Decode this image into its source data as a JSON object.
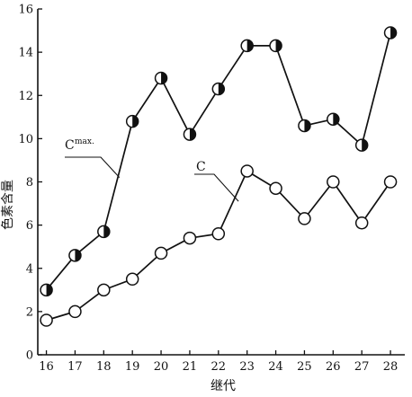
{
  "chart_data": {
    "type": "line",
    "xlabel": "继代",
    "ylabel": "色素含量",
    "xlim": [
      15.7,
      28.5
    ],
    "ylim": [
      0,
      16
    ],
    "x_ticks": [
      16,
      17,
      18,
      19,
      20,
      21,
      22,
      23,
      24,
      25,
      26,
      27,
      28
    ],
    "y_ticks": [
      0,
      2,
      4,
      6,
      8,
      10,
      12,
      14,
      16
    ],
    "grid": false,
    "series": [
      {
        "name": "C",
        "name_sup": "max.",
        "marker": "half-filled-circle",
        "x": [
          16,
          17,
          18,
          19,
          20,
          21,
          22,
          23,
          24,
          25,
          26,
          27,
          28
        ],
        "y": [
          3.0,
          4.6,
          5.7,
          10.8,
          12.8,
          10.2,
          12.3,
          14.3,
          14.3,
          10.6,
          10.9,
          9.7,
          14.9
        ]
      },
      {
        "name": "C",
        "name_sup": "",
        "marker": "open-circle",
        "x": [
          16,
          17,
          18,
          19,
          20,
          21,
          22,
          23,
          24,
          25,
          26,
          27,
          28
        ],
        "y": [
          1.6,
          2.0,
          3.0,
          3.5,
          4.7,
          5.4,
          5.6,
          8.5,
          7.7,
          6.3,
          8.0,
          6.1,
          8.0
        ]
      }
    ]
  }
}
